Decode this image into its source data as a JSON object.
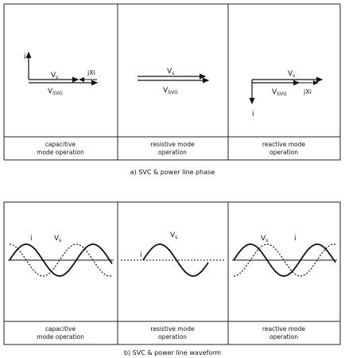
{
  "panel_a": {
    "caption": "a) SVC & power line phase",
    "columns": [
      {
        "mode_line1": "capacitive",
        "mode_line2": "mode operation",
        "labels": {
          "i": "i",
          "vs": "V",
          "vs_sub": "s",
          "vsvg": "V",
          "vsvg_sub": "SVG",
          "jxi": "jXi"
        }
      },
      {
        "mode_line1": "resistive mode",
        "mode_line2": "operation",
        "labels": {
          "vs": "V",
          "vs_sub": "s",
          "vsvg": "V",
          "vsvg_sub": "SVG"
        }
      },
      {
        "mode_line1": "reactive mode",
        "mode_line2": "operation",
        "labels": {
          "i": "i",
          "vs": "V",
          "vs_sub": "s",
          "vsvg": "V",
          "vsvg_sub": "SVG",
          "jxi": "jXi"
        }
      }
    ]
  },
  "panel_b": {
    "caption": "b) SVC & power line waveform",
    "columns": [
      {
        "mode_line1": "capacitive",
        "mode_line2": "mode operation",
        "labels": {
          "i": "i",
          "vs": "V",
          "vs_sub": "s"
        }
      },
      {
        "mode_line1": "resistive mode",
        "mode_line2": "operation",
        "labels": {
          "i": "i",
          "vs": "V",
          "vs_sub": "s"
        }
      },
      {
        "mode_line1": "reactive mode",
        "mode_line2": "operation",
        "labels": {
          "i": "i",
          "vs": "V",
          "vs_sub": "s"
        }
      }
    ]
  }
}
